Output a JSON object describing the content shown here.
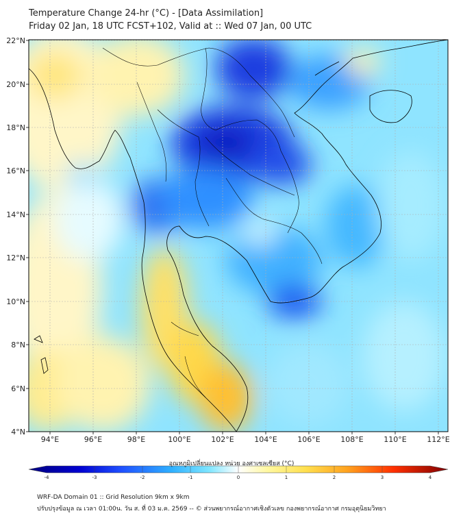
{
  "title_line1": "Temperature Change 24-hr (°C) - [Data Assimilation]",
  "title_line2": "Friday 02 Jan, 18 UTC FCST+102, Valid at :: Wed 07 Jan, 00 UTC",
  "lat_labels": [
    "22°N",
    "20°N",
    "18°N",
    "16°N",
    "14°N",
    "12°N",
    "10°N",
    "8°N",
    "6°N",
    "4°N"
  ],
  "lon_labels": [
    "94°E",
    "96°E",
    "98°E",
    "100°E",
    "102°E",
    "104°E",
    "106°E",
    "108°E",
    "110°E",
    "112°E"
  ],
  "colorbar": {
    "label": "อุณหภูมิเปลี่ยนแปลง หน่วย องศาเซลเซียส (°C)",
    "ticks": [
      "-4",
      "-3",
      "-2",
      "-1",
      "0",
      "1",
      "2",
      "3",
      "4"
    ],
    "colors": [
      "#00007f",
      "#0000d0",
      "#1f3fff",
      "#2f8fff",
      "#3fcfff",
      "#7fe6ff",
      "#cff6ff",
      "#ffffff",
      "#fffccf",
      "#fff27f",
      "#ffd93f",
      "#ffad1f",
      "#ff6a00",
      "#e01000",
      "#9a0000"
    ]
  },
  "footer_line1": "WRF-DA Domain 01 :: Grid Resolution 9km x 9km",
  "footer_line2": "ปรับปรุงข้อมูล ณ เวลา 01:00น. วัน ส. ที่ 03 ม.ค. 2569 -- © ส่วนพยากรณ์อากาศเชิงตัวเลข กองพยากรณ์อากาศ กรมอุตุนิยมวิทยา"
}
